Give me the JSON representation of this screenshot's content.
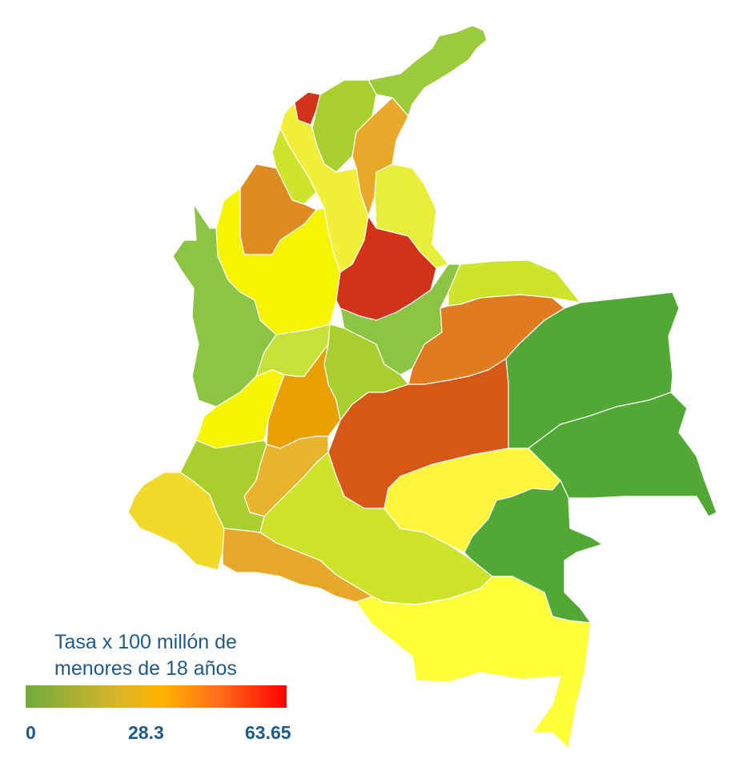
{
  "legend": {
    "title_line1": "Tasa x 100 millón de",
    "title_line2": "menores de 18 años",
    "ticks": [
      "0",
      "28.3",
      "63.65"
    ],
    "scale_colors": [
      "#6faa3e",
      "#d8b52a",
      "#ffb400",
      "#ff6a1a",
      "#ff0000"
    ]
  },
  "regions": [
    {
      "id": "la-guajira",
      "color": "#9bcb3a"
    },
    {
      "id": "atlantico",
      "color": "#d23217"
    },
    {
      "id": "magdalena",
      "color": "#a9cf2e"
    },
    {
      "id": "cesar",
      "color": "#e8a82a"
    },
    {
      "id": "bolivar",
      "color": "#f2ee3a"
    },
    {
      "id": "sucre",
      "color": "#cde32c"
    },
    {
      "id": "cordoba",
      "color": "#e08a22"
    },
    {
      "id": "norte-de-santander",
      "color": "#e8ef3a"
    },
    {
      "id": "antioquia",
      "color": "#f6f500"
    },
    {
      "id": "santander",
      "color": "#d23217"
    },
    {
      "id": "choco",
      "color": "#8cc443"
    },
    {
      "id": "boyaca",
      "color": "#8cc443"
    },
    {
      "id": "arauca",
      "color": "#cde32c"
    },
    {
      "id": "casanare",
      "color": "#e07b1f"
    },
    {
      "id": "vichada",
      "color": "#52a834"
    },
    {
      "id": "caldas-risaralda-quindio",
      "color": "#c7e03a"
    },
    {
      "id": "cundinamarca",
      "color": "#a9cf2e"
    },
    {
      "id": "valle-del-cauca",
      "color": "#f6f500"
    },
    {
      "id": "tolima",
      "color": "#e8a000"
    },
    {
      "id": "meta",
      "color": "#d75717"
    },
    {
      "id": "huila",
      "color": "#e9b32c"
    },
    {
      "id": "cauca",
      "color": "#a9cf2e"
    },
    {
      "id": "narino",
      "color": "#f2da2c"
    },
    {
      "id": "putumayo",
      "color": "#e8a82a"
    },
    {
      "id": "caqueta",
      "color": "#cde32c"
    },
    {
      "id": "guaviare",
      "color": "#fff53a"
    },
    {
      "id": "guainia",
      "color": "#52a834"
    },
    {
      "id": "vaupes",
      "color": "#52a834"
    },
    {
      "id": "amazonas",
      "color": "#ffff3a"
    }
  ]
}
